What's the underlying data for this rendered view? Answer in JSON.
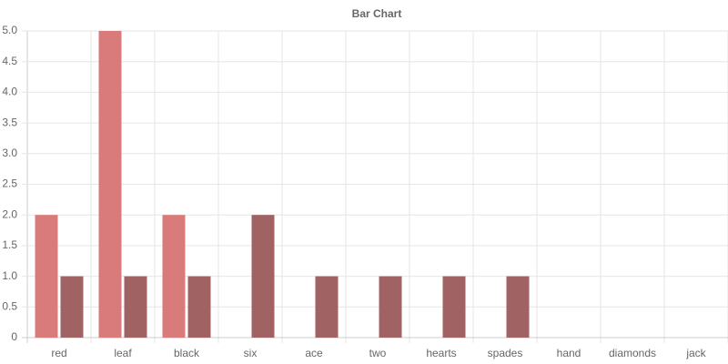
{
  "chart_data": {
    "type": "bar",
    "title": "Bar Chart",
    "categories": [
      "red",
      "leaf",
      "black",
      "six",
      "ace",
      "two",
      "hearts",
      "spades",
      "hand",
      "diamonds",
      "jack"
    ],
    "series": [
      {
        "color": "#d97b7b",
        "values": [
          2,
          5,
          2,
          0,
          0,
          0,
          0,
          0,
          0,
          0,
          0
        ]
      },
      {
        "color": "#a06262",
        "values": [
          1,
          1,
          1,
          2,
          1,
          1,
          1,
          1,
          0,
          0,
          0
        ]
      }
    ],
    "ylim": [
      0,
      5
    ],
    "yticks": [
      0,
      0.5,
      {
        "value": 1,
        "label": "1.0"
      },
      1.5,
      {
        "value": 2,
        "label": "2.0"
      },
      2.5,
      {
        "value": 3,
        "label": "3.0"
      },
      3.5,
      {
        "value": 4,
        "label": "4.0"
      },
      4.5,
      {
        "value": 5,
        "label": "5.0"
      }
    ],
    "grid": true
  }
}
